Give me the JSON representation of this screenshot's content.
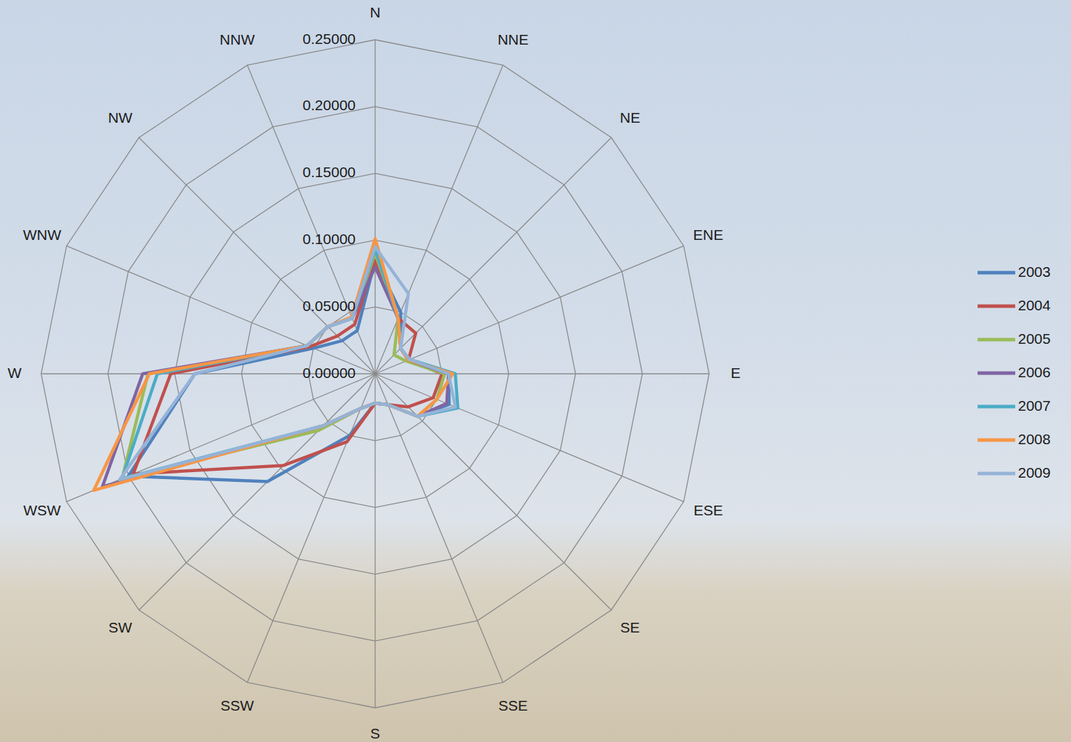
{
  "chart_data": {
    "type": "radar",
    "categories": [
      "N",
      "NNE",
      "NE",
      "ENE",
      "E",
      "ESE",
      "SE",
      "SSE",
      "S",
      "SSW",
      "SW",
      "WSW",
      "W",
      "WNW",
      "NW",
      "NNW"
    ],
    "ylim": [
      0,
      0.25
    ],
    "yticks": [
      {
        "value": 0,
        "label": "0.00000"
      },
      {
        "value": 0.05,
        "label": "0.05000"
      },
      {
        "value": 0.1,
        "label": "0.10000"
      },
      {
        "value": 0.15,
        "label": "0.15000"
      },
      {
        "value": 0.2,
        "label": "0.20000"
      },
      {
        "value": 0.25,
        "label": "0.25000"
      }
    ],
    "grid": true,
    "legend": "right",
    "series": [
      {
        "name": "2003",
        "color": "#4f81bd",
        "values": [
          0.085,
          0.05,
          0.027,
          0.027,
          0.055,
          0.06,
          0.045,
          0.025,
          0.022,
          0.05,
          0.114,
          0.2,
          0.135,
          0.05,
          0.035,
          0.035
        ]
      },
      {
        "name": "2004",
        "color": "#c0504d",
        "values": [
          0.085,
          0.045,
          0.043,
          0.027,
          0.05,
          0.047,
          0.035,
          0.025,
          0.022,
          0.055,
          0.097,
          0.196,
          0.153,
          0.053,
          0.04,
          0.04
        ]
      },
      {
        "name": "2005",
        "color": "#9bbb59",
        "values": [
          0.09,
          0.045,
          0.02,
          0.025,
          0.052,
          0.05,
          0.045,
          0.025,
          0.022,
          0.028,
          0.06,
          0.205,
          0.17,
          0.055,
          0.05,
          0.045
        ]
      },
      {
        "name": "2006",
        "color": "#8064a2",
        "values": [
          0.08,
          0.045,
          0.027,
          0.027,
          0.055,
          0.058,
          0.045,
          0.025,
          0.022,
          0.028,
          0.055,
          0.221,
          0.174,
          0.055,
          0.05,
          0.045
        ]
      },
      {
        "name": "2007",
        "color": "#4bacc6",
        "values": [
          0.093,
          0.045,
          0.027,
          0.028,
          0.06,
          0.067,
          0.045,
          0.025,
          0.022,
          0.028,
          0.055,
          0.205,
          0.163,
          0.055,
          0.05,
          0.045
        ]
      },
      {
        "name": "2008",
        "color": "#f79646",
        "values": [
          0.101,
          0.045,
          0.027,
          0.027,
          0.058,
          0.05,
          0.045,
          0.025,
          0.022,
          0.028,
          0.055,
          0.228,
          0.169,
          0.055,
          0.05,
          0.046
        ]
      },
      {
        "name": "2009",
        "color": "#95b3d7",
        "values": [
          0.095,
          0.065,
          0.027,
          0.028,
          0.055,
          0.065,
          0.045,
          0.025,
          0.022,
          0.028,
          0.055,
          0.207,
          0.135,
          0.055,
          0.05,
          0.045
        ]
      }
    ]
  }
}
